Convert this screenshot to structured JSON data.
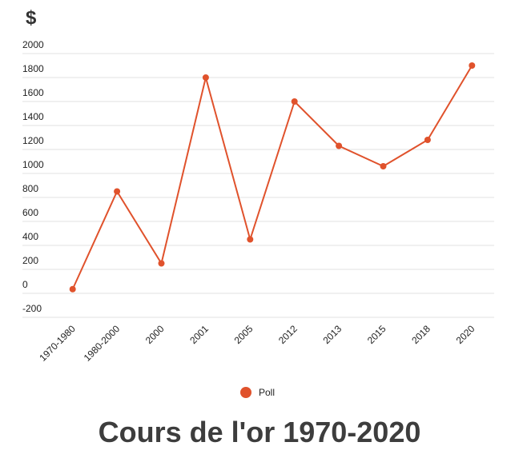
{
  "chart_data": {
    "type": "line",
    "title": "Cours de l'or 1970-2020",
    "y_label": "$",
    "categories": [
      "1970-1980",
      "1980-2000",
      "2000",
      "2001",
      "2005",
      "2012",
      "2013",
      "2015",
      "2018",
      "2020"
    ],
    "series": [
      {
        "name": "Poll",
        "color": "#e0522c",
        "values": [
          35,
          850,
          250,
          1800,
          450,
          1600,
          1230,
          1060,
          1280,
          1900
        ]
      }
    ],
    "ylim": [
      -200,
      2000
    ],
    "yticks": [
      -200,
      0,
      200,
      400,
      600,
      800,
      1000,
      1200,
      1400,
      1600,
      1800,
      2000
    ],
    "grid": true,
    "legend": "bottom"
  }
}
